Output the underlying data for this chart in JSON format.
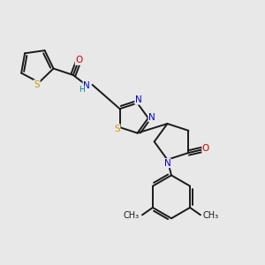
{
  "bg_color": "#e8e8e8",
  "bond_color": "#1a1a1a",
  "atom_colors": {
    "S": "#c8a000",
    "N": "#0000cc",
    "O": "#cc0000",
    "H": "#008080",
    "C": "#1a1a1a"
  },
  "font_size": 7.5,
  "lw": 1.4,
  "figsize": [
    3.0,
    3.0
  ],
  "dpi": 100
}
